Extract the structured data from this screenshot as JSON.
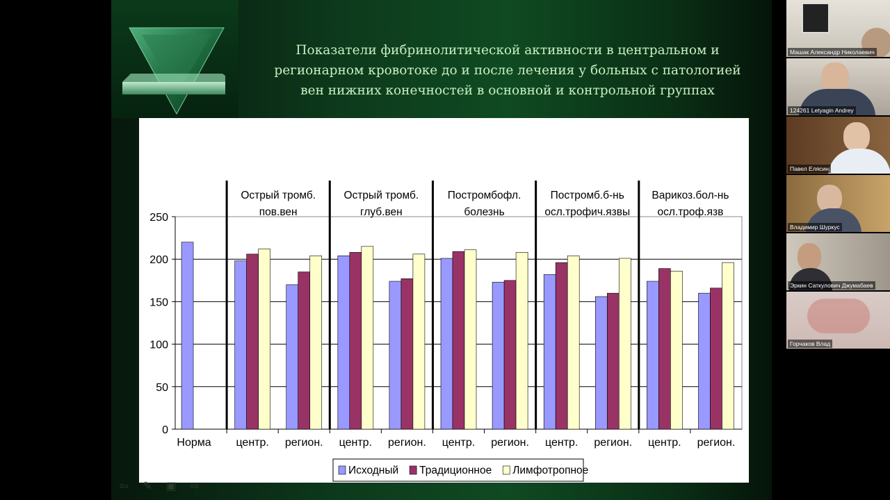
{
  "slide": {
    "title_lines": [
      "Показатели фибринолитической активности в центральном и",
      "регионарном кровотоке до и после лечения у больных с патологией",
      "вен нижних конечностей в основной и контрольной группах"
    ]
  },
  "chart_data": {
    "type": "bar",
    "ylim": [
      0,
      250
    ],
    "yticks": [
      0,
      50,
      100,
      150,
      200,
      250
    ],
    "categories": [
      "Норма",
      "центр.",
      "регион.",
      "центр.",
      "регион.",
      "центр.",
      "регион.",
      "центр.",
      "регион.",
      "центр.",
      "регион."
    ],
    "groups": [
      {
        "label_lines": [
          "Острый тромб.",
          "пов.вен"
        ]
      },
      {
        "label_lines": [
          "Острый тромб.",
          "глуб.вен"
        ]
      },
      {
        "label_lines": [
          "Постромбофл.",
          "болезнь"
        ]
      },
      {
        "label_lines": [
          "Постромб.б-нь",
          "осл.трофич.язвы"
        ]
      },
      {
        "label_lines": [
          "Варикоз.бол-нь",
          "осл.троф.язв"
        ]
      }
    ],
    "series": [
      {
        "name": "Исходный",
        "color": "#9999ff",
        "values": [
          220,
          198,
          170,
          204,
          174,
          201,
          173,
          182,
          156,
          174,
          160
        ]
      },
      {
        "name": "Традиционное",
        "color": "#993366",
        "values": [
          null,
          206,
          185,
          208,
          177,
          209,
          175,
          196,
          160,
          189,
          166
        ]
      },
      {
        "name": "Лимфотропное",
        "color": "#ffffcc",
        "values": [
          null,
          212,
          204,
          215,
          206,
          211,
          208,
          204,
          201,
          186,
          196
        ]
      }
    ],
    "grid": true,
    "legend_position": "bottom"
  },
  "nav": {
    "icons": [
      "arrow-left-icon",
      "pen-icon",
      "screen-icon",
      "arrow-right-icon"
    ],
    "glyphs": [
      "⇦",
      "✎",
      "▣",
      "⇨"
    ]
  },
  "participants": [
    {
      "name": "Машак Александр Николаевич"
    },
    {
      "name": "124261 Letyagin Andrey"
    },
    {
      "name": "Павел Елясин"
    },
    {
      "name": "Владимир Шуркус"
    },
    {
      "name": "Эркин Саткулович Джумабаев"
    },
    {
      "name": "Горчаков Влад"
    }
  ]
}
